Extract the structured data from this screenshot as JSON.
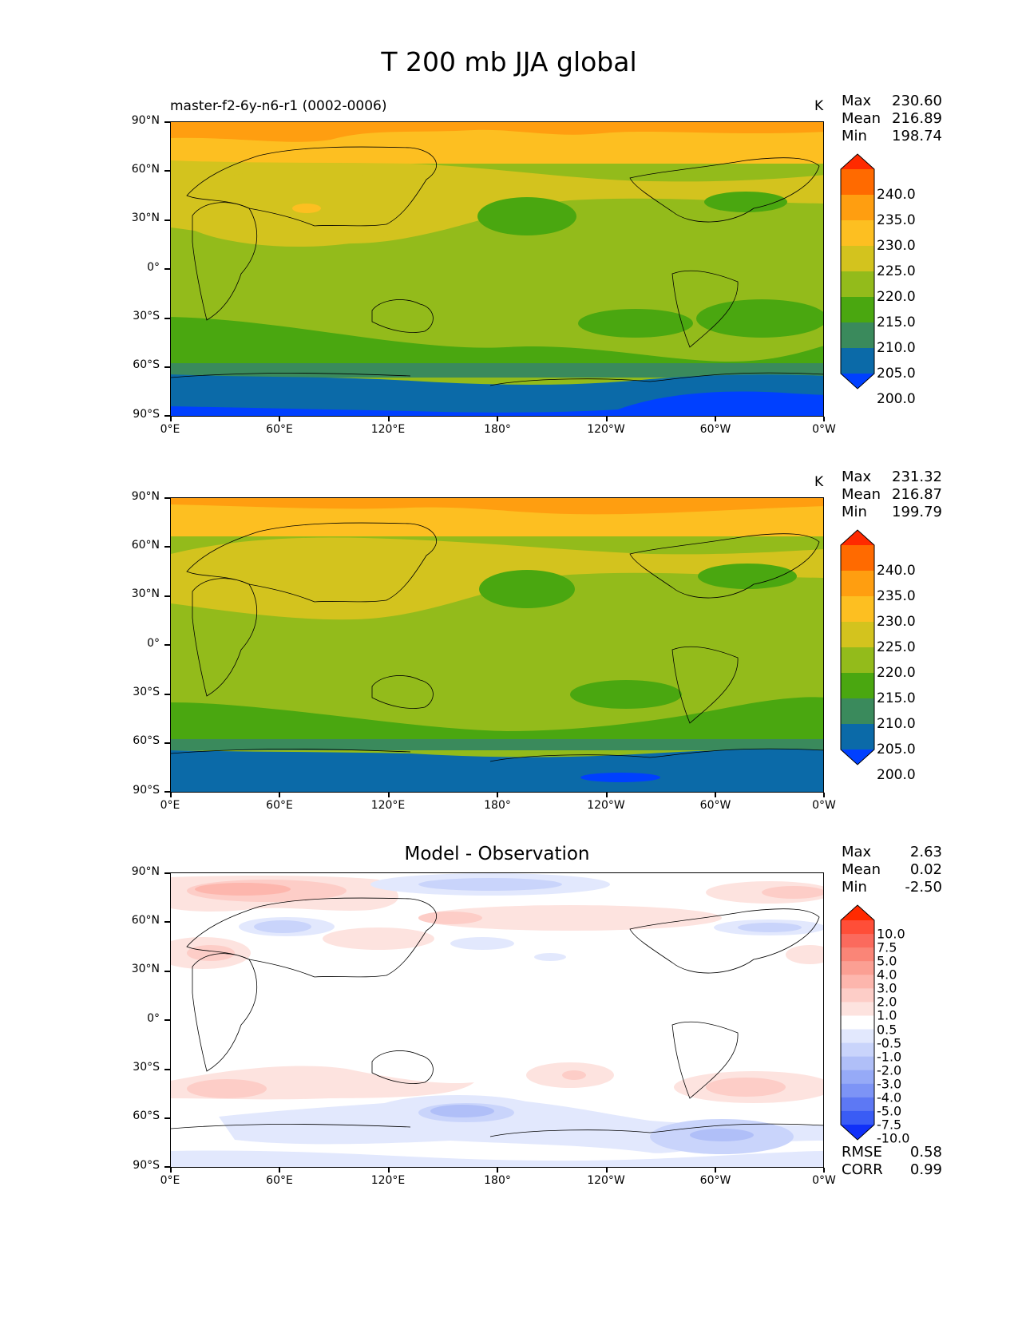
{
  "title": "T 200 mb JJA global",
  "axes": {
    "lat_ticks": [
      "90°N",
      "60°N",
      "30°N",
      "0°",
      "30°S",
      "60°S",
      "90°S"
    ],
    "lon_ticks": [
      "0°E",
      "60°E",
      "120°E",
      "180°",
      "120°W",
      "60°W",
      "0°W"
    ]
  },
  "panels": [
    {
      "subtitle": "master-f2-6y-n6-r1 (0002-0006)",
      "center_title": "",
      "units": "K",
      "stats": {
        "max_label": "Max",
        "max": "230.60",
        "mean_label": "Mean",
        "mean": "216.89",
        "min_label": "Min",
        "min": "198.74"
      },
      "colorbar": {
        "labels": [
          "240.0",
          "235.0",
          "230.0",
          "225.0",
          "220.0",
          "215.0",
          "210.0",
          "205.0",
          "200.0"
        ],
        "colors": [
          "#ff2a00",
          "#ff6a00",
          "#ff9e10",
          "#fdbf21",
          "#d3c31e",
          "#93bb1b",
          "#4aa710",
          "#3a8a5c",
          "#0b6aa8",
          "#0040ff"
        ]
      },
      "extra_stats": null
    },
    {
      "subtitle": "",
      "center_title": "",
      "units": "K",
      "stats": {
        "max_label": "Max",
        "max": "231.32",
        "mean_label": "Mean",
        "mean": "216.87",
        "min_label": "Min",
        "min": "199.79"
      },
      "colorbar": {
        "labels": [
          "240.0",
          "235.0",
          "230.0",
          "225.0",
          "220.0",
          "215.0",
          "210.0",
          "205.0",
          "200.0"
        ],
        "colors": [
          "#ff2a00",
          "#ff6a00",
          "#ff9e10",
          "#fdbf21",
          "#d3c31e",
          "#93bb1b",
          "#4aa710",
          "#3a8a5c",
          "#0b6aa8",
          "#0040ff"
        ]
      },
      "extra_stats": null
    },
    {
      "subtitle": "",
      "center_title": "Model - Observation",
      "units": "",
      "stats": {
        "max_label": "Max",
        "max": "2.63",
        "mean_label": "Mean",
        "mean": "0.02",
        "min_label": "Min",
        "min": "-2.50"
      },
      "colorbar": {
        "labels": [
          "10.0",
          "7.5",
          "5.0",
          "4.0",
          "3.0",
          "2.0",
          "1.0",
          "0.5",
          "-0.5",
          "-1.0",
          "-2.0",
          "-3.0",
          "-4.0",
          "-5.0",
          "-7.5",
          "-10.0"
        ],
        "colors": [
          "#ff2a00",
          "#ff4e38",
          "#fb6a5d",
          "#fa8577",
          "#fb9f93",
          "#fdb6ad",
          "#fdcdc7",
          "#fde3df",
          "#ffffff",
          "#e2e8fd",
          "#c9d4fb",
          "#b0bff8",
          "#96aaf7",
          "#7d94f6",
          "#5d78f4",
          "#3a5cf5",
          "#1030f8"
        ]
      },
      "extra_stats": {
        "rmse_label": "RMSE",
        "rmse": "0.58",
        "corr_label": "CORR",
        "corr": "0.99"
      }
    }
  ]
}
